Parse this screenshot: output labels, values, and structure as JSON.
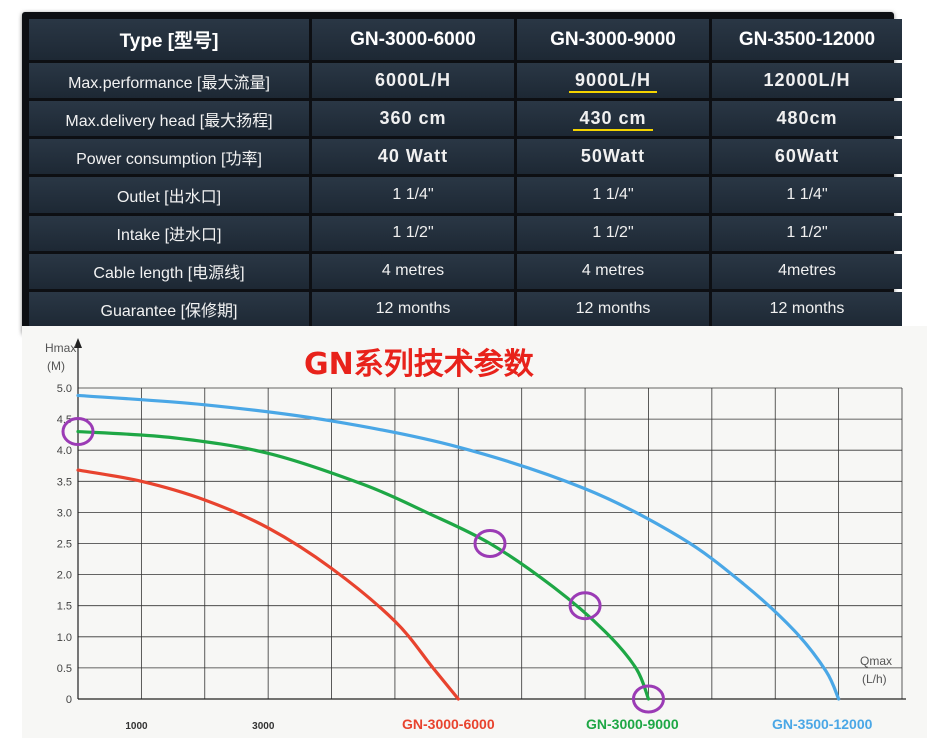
{
  "table": {
    "type_header": "Type [型号]",
    "models": [
      "GN-3000-6000",
      "GN-3000-9000",
      "GN-3500-12000"
    ],
    "rows": [
      {
        "label": "Max.performance [最大流量]",
        "values": [
          "6000L/H",
          "9000L/H",
          "12000L/H"
        ],
        "bold": true
      },
      {
        "label": "Max.delivery head [最大扬程]",
        "values": [
          "360 cm",
          "430 cm",
          "480cm"
        ],
        "bold": true
      },
      {
        "label": "Power consumption [功率]",
        "values": [
          "40 Watt",
          "50Watt",
          "60Watt"
        ],
        "bold": true
      },
      {
        "label": "Outlet [出水口]",
        "values": [
          "1 1/4\"",
          "1 1/4\"",
          "1 1/4\""
        ],
        "bold": false
      },
      {
        "label": "Intake [进水口]",
        "values": [
          "1 1/2\"",
          "1 1/2\"",
          "1 1/2\""
        ],
        "bold": false
      },
      {
        "label": "Cable length [电源线]",
        "values": [
          "4 metres",
          "4 metres",
          "4metres"
        ],
        "bold": false
      },
      {
        "label": "Guarantee [保修期]",
        "values": [
          "12 months",
          "12 months",
          "12 months"
        ],
        "bold": false
      }
    ],
    "highlighted_cells": [
      "9000L/H",
      "430 cm"
    ],
    "highlight_color": "#f4d300"
  },
  "chart_data": {
    "type": "line",
    "title": "GN系列技术参数",
    "ylabel_line1": "Hmax",
    "ylabel_line2": "(M)",
    "xlabel_line1": "Qmax",
    "xlabel_line2": "(L/h)",
    "ylim": [
      0,
      5.0
    ],
    "xlim": [
      0,
      13000
    ],
    "yticks": [
      "0",
      "0.5",
      "1.0",
      "1.5",
      "2.0",
      "2.5",
      "3.0",
      "3.5",
      "4.0",
      "4.5",
      "5.0"
    ],
    "xtick_labels": [
      {
        "x": 1000,
        "label": "1000"
      },
      {
        "x": 3000,
        "label": "3000"
      }
    ],
    "grid": true,
    "series": [
      {
        "name": "GN-3000-6000",
        "color": "#e8432e",
        "points": [
          [
            0,
            3.68
          ],
          [
            1000,
            3.5
          ],
          [
            2000,
            3.2
          ],
          [
            3000,
            2.75
          ],
          [
            4000,
            2.1
          ],
          [
            5000,
            1.25
          ],
          [
            5600,
            0.5
          ],
          [
            6000,
            0
          ]
        ]
      },
      {
        "name": "GN-3000-9000",
        "color": "#1ea745",
        "points": [
          [
            0,
            4.3
          ],
          [
            1500,
            4.2
          ],
          [
            3000,
            3.95
          ],
          [
            4500,
            3.45
          ],
          [
            5500,
            3.0
          ],
          [
            6500,
            2.5
          ],
          [
            7500,
            1.8
          ],
          [
            8300,
            1.1
          ],
          [
            8800,
            0.5
          ],
          [
            9000,
            0
          ]
        ]
      },
      {
        "name": "GN-3500-12000",
        "color": "#4aa7e6",
        "points": [
          [
            0,
            4.88
          ],
          [
            2000,
            4.73
          ],
          [
            4000,
            4.47
          ],
          [
            6000,
            4.05
          ],
          [
            8000,
            3.38
          ],
          [
            9500,
            2.6
          ],
          [
            10500,
            1.85
          ],
          [
            11300,
            1.1
          ],
          [
            11800,
            0.45
          ],
          [
            12000,
            0
          ]
        ]
      }
    ],
    "circled_points": [
      [
        0,
        4.3
      ],
      [
        6500,
        2.5
      ],
      [
        8000,
        1.5
      ],
      [
        9000,
        0
      ]
    ],
    "circle_color": "#9b3bb5",
    "title_color": "#e8221b",
    "grid_color": "#333333"
  }
}
